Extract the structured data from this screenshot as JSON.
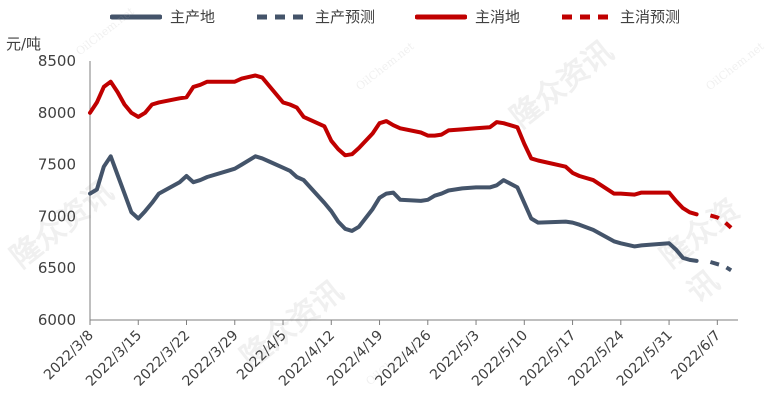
{
  "chart_data": {
    "type": "line",
    "ylabel": "元/吨",
    "ylim": [
      6000,
      8500
    ],
    "yticks": [
      6000,
      6500,
      7000,
      7500,
      8000,
      8500
    ],
    "xlim": [
      "2022-03-08",
      "2022-06-10"
    ],
    "xticks": [
      "2022/3/8",
      "2022/3/15",
      "2022/3/22",
      "2022/3/29",
      "2022/4/5",
      "2022/4/12",
      "2022/4/19",
      "2022/4/26",
      "2022/5/3",
      "2022/5/10",
      "2022/5/17",
      "2022/5/24",
      "2022/5/31",
      "2022/6/7"
    ],
    "watermark": {
      "logo": "隆众资讯",
      "site": "OilChem.net"
    },
    "series": [
      {
        "name": "主产地",
        "color": "#44546A",
        "style": "solid",
        "points": [
          [
            "2022-03-08",
            7220
          ],
          [
            "2022-03-09",
            7260
          ],
          [
            "2022-03-10",
            7480
          ],
          [
            "2022-03-11",
            7580
          ],
          [
            "2022-03-12",
            7400
          ],
          [
            "2022-03-13",
            7220
          ],
          [
            "2022-03-14",
            7040
          ],
          [
            "2022-03-15",
            6980
          ],
          [
            "2022-03-16",
            7050
          ],
          [
            "2022-03-17",
            7130
          ],
          [
            "2022-03-18",
            7220
          ],
          [
            "2022-03-21",
            7330
          ],
          [
            "2022-03-22",
            7390
          ],
          [
            "2022-03-23",
            7330
          ],
          [
            "2022-03-24",
            7350
          ],
          [
            "2022-03-25",
            7380
          ],
          [
            "2022-03-28",
            7440
          ],
          [
            "2022-03-29",
            7460
          ],
          [
            "2022-03-30",
            7500
          ],
          [
            "2022-04-01",
            7580
          ],
          [
            "2022-04-02",
            7560
          ],
          [
            "2022-04-03",
            7530
          ],
          [
            "2022-04-05",
            7470
          ],
          [
            "2022-04-06",
            7440
          ],
          [
            "2022-04-07",
            7380
          ],
          [
            "2022-04-08",
            7350
          ],
          [
            "2022-04-11",
            7130
          ],
          [
            "2022-04-12",
            7050
          ],
          [
            "2022-04-13",
            6950
          ],
          [
            "2022-04-14",
            6880
          ],
          [
            "2022-04-15",
            6860
          ],
          [
            "2022-04-16",
            6900
          ],
          [
            "2022-04-18",
            7070
          ],
          [
            "2022-04-19",
            7180
          ],
          [
            "2022-04-20",
            7220
          ],
          [
            "2022-04-21",
            7230
          ],
          [
            "2022-04-22",
            7160
          ],
          [
            "2022-04-25",
            7150
          ],
          [
            "2022-04-26",
            7160
          ],
          [
            "2022-04-27",
            7200
          ],
          [
            "2022-04-28",
            7220
          ],
          [
            "2022-04-29",
            7250
          ],
          [
            "2022-05-01",
            7270
          ],
          [
            "2022-05-03",
            7280
          ],
          [
            "2022-05-05",
            7280
          ],
          [
            "2022-05-06",
            7300
          ],
          [
            "2022-05-07",
            7350
          ],
          [
            "2022-05-09",
            7280
          ],
          [
            "2022-05-10",
            7130
          ],
          [
            "2022-05-11",
            6980
          ],
          [
            "2022-05-12",
            6940
          ],
          [
            "2022-05-16",
            6950
          ],
          [
            "2022-05-17",
            6940
          ],
          [
            "2022-05-18",
            6920
          ],
          [
            "2022-05-20",
            6870
          ],
          [
            "2022-05-23",
            6760
          ],
          [
            "2022-05-24",
            6740
          ],
          [
            "2022-05-26",
            6710
          ],
          [
            "2022-05-27",
            6720
          ],
          [
            "2022-05-31",
            6740
          ],
          [
            "2022-06-01",
            6680
          ],
          [
            "2022-06-02",
            6600
          ],
          [
            "2022-06-03",
            6580
          ],
          [
            "2022-06-04",
            6570
          ]
        ]
      },
      {
        "name": "主产预测",
        "color": "#44546A",
        "style": "dashed",
        "points": [
          [
            "2022-06-06",
            6560
          ],
          [
            "2022-06-07",
            6540
          ],
          [
            "2022-06-08",
            6520
          ],
          [
            "2022-06-09",
            6480
          ]
        ]
      },
      {
        "name": "主消地",
        "color": "#C00000",
        "style": "solid",
        "points": [
          [
            "2022-03-08",
            8000
          ],
          [
            "2022-03-09",
            8100
          ],
          [
            "2022-03-10",
            8250
          ],
          [
            "2022-03-11",
            8300
          ],
          [
            "2022-03-12",
            8200
          ],
          [
            "2022-03-13",
            8080
          ],
          [
            "2022-03-14",
            8000
          ],
          [
            "2022-03-15",
            7960
          ],
          [
            "2022-03-16",
            8000
          ],
          [
            "2022-03-17",
            8080
          ],
          [
            "2022-03-18",
            8100
          ],
          [
            "2022-03-21",
            8140
          ],
          [
            "2022-03-22",
            8150
          ],
          [
            "2022-03-23",
            8250
          ],
          [
            "2022-03-24",
            8270
          ],
          [
            "2022-03-25",
            8300
          ],
          [
            "2022-03-28",
            8300
          ],
          [
            "2022-03-29",
            8300
          ],
          [
            "2022-03-30",
            8330
          ],
          [
            "2022-04-01",
            8360
          ],
          [
            "2022-04-02",
            8340
          ],
          [
            "2022-04-03",
            8260
          ],
          [
            "2022-04-05",
            8100
          ],
          [
            "2022-04-06",
            8080
          ],
          [
            "2022-04-07",
            8050
          ],
          [
            "2022-04-08",
            7960
          ],
          [
            "2022-04-11",
            7870
          ],
          [
            "2022-04-12",
            7730
          ],
          [
            "2022-04-13",
            7650
          ],
          [
            "2022-04-14",
            7590
          ],
          [
            "2022-04-15",
            7600
          ],
          [
            "2022-04-16",
            7660
          ],
          [
            "2022-04-18",
            7800
          ],
          [
            "2022-04-19",
            7900
          ],
          [
            "2022-04-20",
            7920
          ],
          [
            "2022-04-21",
            7880
          ],
          [
            "2022-04-22",
            7850
          ],
          [
            "2022-04-25",
            7810
          ],
          [
            "2022-04-26",
            7780
          ],
          [
            "2022-04-27",
            7780
          ],
          [
            "2022-04-28",
            7790
          ],
          [
            "2022-04-29",
            7830
          ],
          [
            "2022-05-01",
            7840
          ],
          [
            "2022-05-03",
            7850
          ],
          [
            "2022-05-05",
            7860
          ],
          [
            "2022-05-06",
            7910
          ],
          [
            "2022-05-07",
            7900
          ],
          [
            "2022-05-09",
            7860
          ],
          [
            "2022-05-10",
            7700
          ],
          [
            "2022-05-11",
            7560
          ],
          [
            "2022-05-12",
            7540
          ],
          [
            "2022-05-16",
            7480
          ],
          [
            "2022-05-17",
            7420
          ],
          [
            "2022-05-18",
            7390
          ],
          [
            "2022-05-20",
            7350
          ],
          [
            "2022-05-23",
            7220
          ],
          [
            "2022-05-24",
            7220
          ],
          [
            "2022-05-26",
            7210
          ],
          [
            "2022-05-27",
            7230
          ],
          [
            "2022-05-31",
            7230
          ],
          [
            "2022-06-01",
            7150
          ],
          [
            "2022-06-02",
            7080
          ],
          [
            "2022-06-03",
            7040
          ],
          [
            "2022-06-04",
            7020
          ]
        ]
      },
      {
        "name": "主消预测",
        "color": "#C00000",
        "style": "dashed",
        "points": [
          [
            "2022-06-06",
            7010
          ],
          [
            "2022-06-07",
            6990
          ],
          [
            "2022-06-08",
            6950
          ],
          [
            "2022-06-09",
            6890
          ]
        ]
      }
    ]
  }
}
